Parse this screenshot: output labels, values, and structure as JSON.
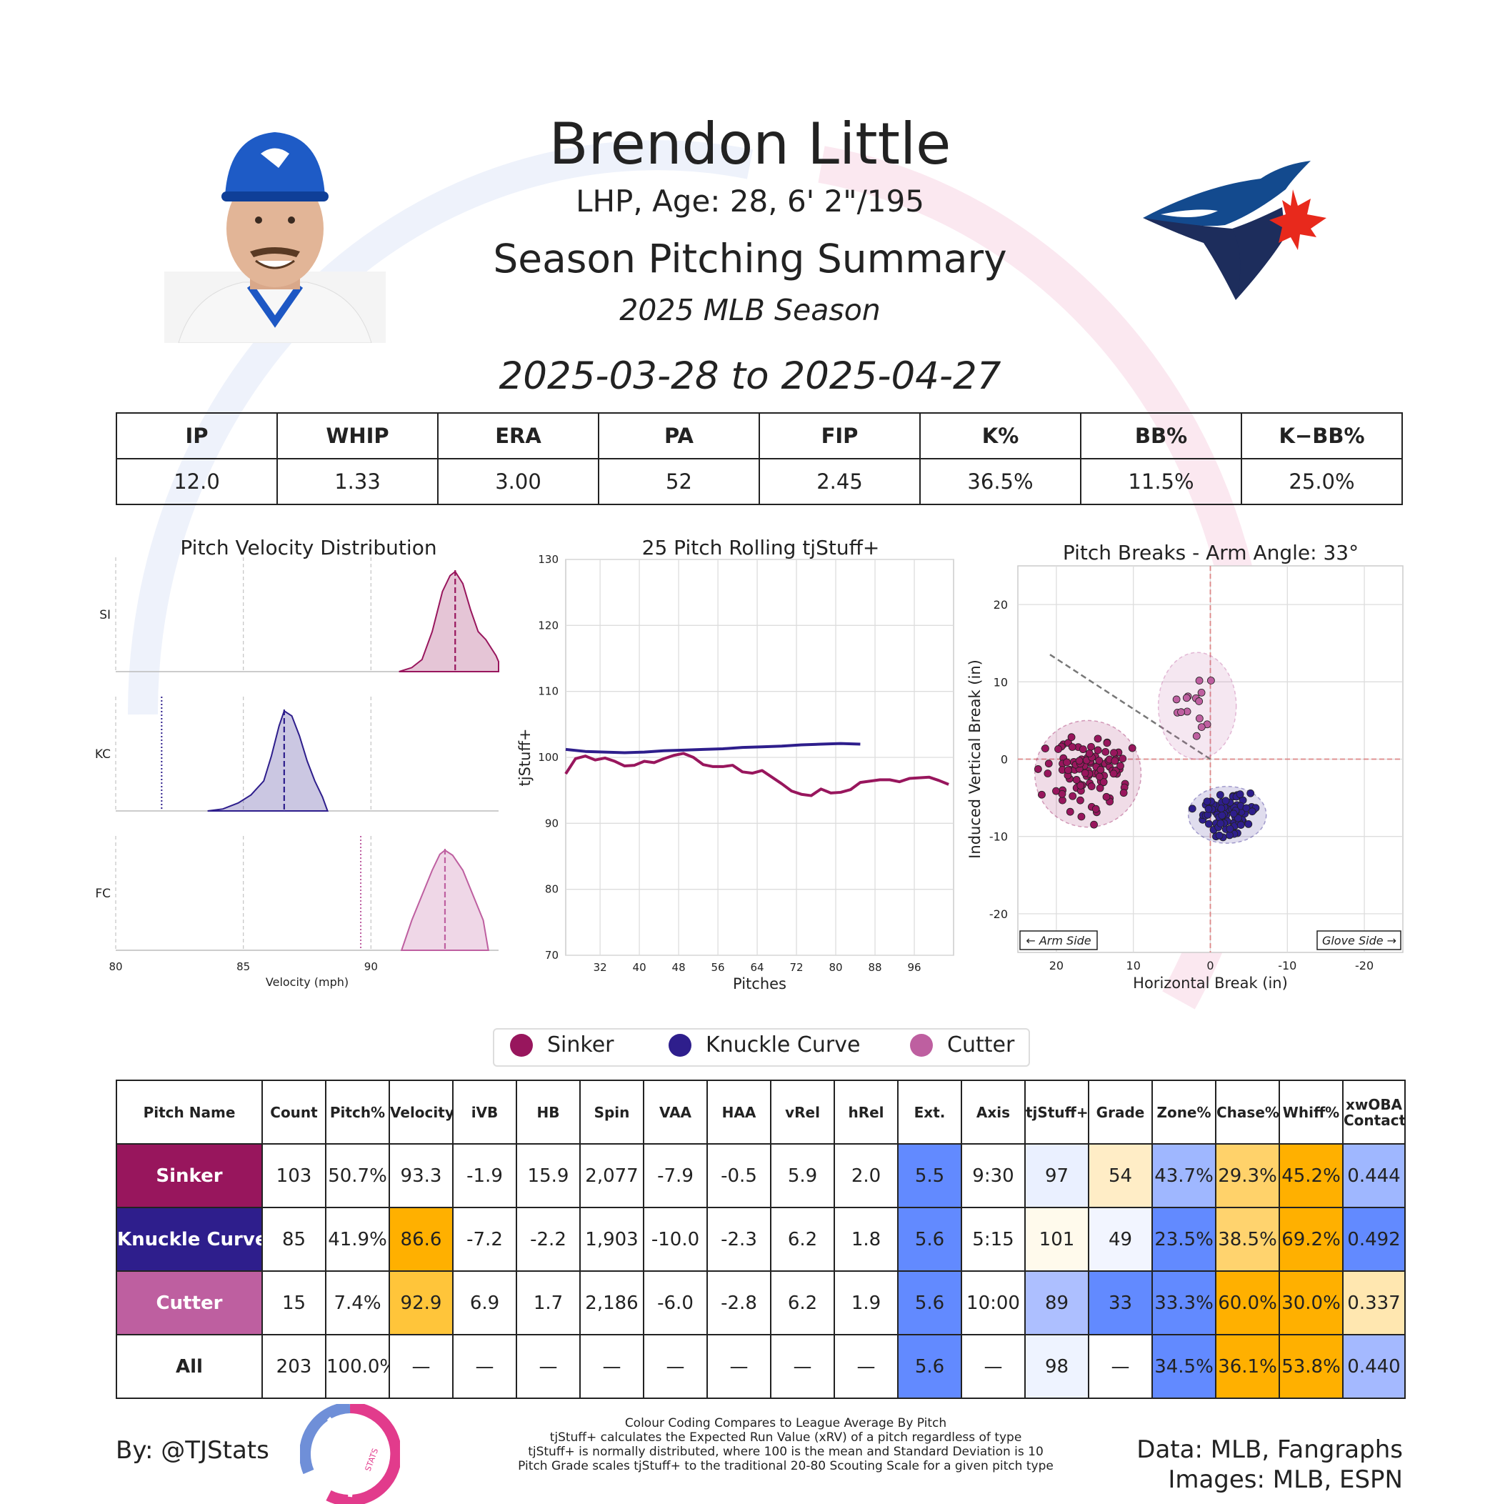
{
  "header": {
    "name": "Brendon Little",
    "bio": "LHP, Age: 28, 6' 2\"/195",
    "summary_title": "Season Pitching Summary",
    "season": "2025 MLB Season",
    "date_range": "2025-03-28 to 2025-04-27"
  },
  "season_stats": {
    "headers": [
      "IP",
      "WHIP",
      "ERA",
      "PA",
      "FIP",
      "K%",
      "BB%",
      "K−BB%"
    ],
    "values": [
      "12.0",
      "1.33",
      "3.00",
      "52",
      "2.45",
      "36.5%",
      "11.5%",
      "25.0%"
    ]
  },
  "colors": {
    "sinker": "#98165d",
    "knuckle_curve": "#2e1e8c",
    "cutter": "#be5fa0",
    "blue_cell": "#628aff",
    "light_blue_cell": "#adbfff",
    "orange_cell": "#ffb000",
    "light_orange_cell": "#ffd470"
  },
  "chart_data": [
    {
      "type": "area",
      "title": "Pitch Velocity Distribution",
      "xlabel": "Velocity (mph)",
      "xlim": [
        80,
        95
      ],
      "xticks": [
        "80",
        "85",
        "90"
      ],
      "series": [
        {
          "name": "SI",
          "peak": 93.3,
          "x": [
            91.1,
            91.6,
            92.0,
            92.4,
            92.8,
            93.1,
            93.3,
            93.6,
            93.9,
            94.2,
            94.5,
            94.9,
            95.0
          ],
          "y": [
            0.0,
            0.04,
            0.12,
            0.4,
            0.8,
            0.96,
            1.0,
            0.88,
            0.62,
            0.4,
            0.32,
            0.16,
            0.1
          ],
          "mean": 93.3
        },
        {
          "name": "KC",
          "peak": 86.6,
          "x": [
            83.6,
            84.2,
            84.8,
            85.3,
            85.8,
            86.1,
            86.4,
            86.6,
            86.9,
            87.2,
            87.5,
            87.8,
            88.1,
            88.3
          ],
          "y": [
            0.0,
            0.02,
            0.08,
            0.16,
            0.3,
            0.55,
            0.85,
            1.0,
            0.95,
            0.75,
            0.5,
            0.3,
            0.14,
            0.0
          ],
          "mean": 86.6,
          "league_avg": 81.8
        },
        {
          "name": "FC",
          "peak": 92.9,
          "x": [
            91.2,
            91.6,
            92.0,
            92.4,
            92.7,
            92.9,
            93.2,
            93.6,
            94.0,
            94.4,
            94.6
          ],
          "y": [
            0.0,
            0.3,
            0.55,
            0.8,
            0.96,
            1.0,
            0.95,
            0.8,
            0.55,
            0.3,
            0.0
          ],
          "mean": 92.9,
          "league_avg": 89.6
        }
      ]
    },
    {
      "type": "line",
      "title": "25 Pitch Rolling tjStuff+",
      "xlabel": "Pitches",
      "ylabel": "tjStuff+",
      "ylim": [
        70,
        130
      ],
      "xlim": [
        25,
        104
      ],
      "yticks": [
        "70",
        "80",
        "90",
        "100",
        "110",
        "120",
        "130"
      ],
      "xticks": [
        "32",
        "40",
        "48",
        "56",
        "64",
        "72",
        "80",
        "88",
        "96"
      ],
      "series": [
        {
          "name": "Sinker",
          "x": [
            25,
            27,
            29,
            31,
            33,
            35,
            37,
            39,
            41,
            43,
            45,
            47,
            49,
            51,
            53,
            55,
            57,
            59,
            61,
            63,
            65,
            67,
            69,
            71,
            73,
            75,
            77,
            79,
            81,
            83,
            85,
            87,
            89,
            91,
            93,
            95,
            97,
            99,
            101,
            103
          ],
          "values": [
            97.5,
            99.8,
            100.2,
            99.6,
            99.9,
            99.4,
            98.7,
            98.8,
            99.4,
            99.2,
            99.8,
            100.3,
            100.6,
            100.0,
            98.9,
            98.6,
            98.6,
            98.8,
            97.8,
            97.6,
            98.0,
            97.0,
            96.0,
            94.9,
            94.4,
            94.2,
            95.2,
            94.6,
            94.7,
            95.1,
            96.2,
            96.4,
            96.6,
            96.6,
            96.3,
            96.8,
            96.9,
            97.0,
            96.5,
            95.9
          ]
        },
        {
          "name": "Knuckle Curve",
          "x": [
            25,
            29,
            33,
            37,
            41,
            45,
            49,
            53,
            57,
            61,
            65,
            69,
            73,
            77,
            81,
            85
          ],
          "values": [
            101.2,
            100.9,
            100.8,
            100.7,
            100.8,
            101.0,
            101.1,
            101.2,
            101.3,
            101.5,
            101.6,
            101.7,
            101.9,
            102.0,
            102.1,
            102.0
          ]
        }
      ]
    },
    {
      "type": "scatter",
      "title": "Pitch Breaks - Arm Angle: 33°",
      "xlabel": "Horizontal Break (in)",
      "ylabel": "Induced Vertical Break (in)",
      "xlim": [
        25,
        -25
      ],
      "ylim": [
        -25,
        25
      ],
      "xticks": [
        "20",
        "10",
        "0",
        "-10",
        "-20"
      ],
      "yticks": [
        "20",
        "10",
        "0",
        "-10",
        "-20"
      ],
      "arm_angle_deg": 33,
      "annotations": [
        "← Arm Side",
        "Glove Side →"
      ],
      "series": [
        {
          "name": "Sinker",
          "center": [
            15.9,
            -1.9
          ],
          "spread": [
            3.0,
            3.0
          ],
          "count": 103
        },
        {
          "name": "Knuckle Curve",
          "center": [
            -2.2,
            -7.2
          ],
          "spread": [
            2.2,
            1.6
          ],
          "count": 85
        },
        {
          "name": "Cutter",
          "center": [
            1.7,
            6.9
          ],
          "spread": [
            2.2,
            3.0
          ],
          "count": 15
        }
      ]
    }
  ],
  "legend": [
    "Sinker",
    "Knuckle Curve",
    "Cutter"
  ],
  "pitch_table": {
    "headers": [
      "Pitch Name",
      "Count",
      "Pitch%",
      "Velocity",
      "iVB",
      "HB",
      "Spin",
      "VAA",
      "HAA",
      "vRel",
      "hRel",
      "Ext.",
      "Axis",
      "tjStuff+",
      "Grade",
      "Zone%",
      "Chase%",
      "Whiff%",
      "xwOBA Contact"
    ],
    "rows": [
      {
        "key": "sinker",
        "cells": [
          "Sinker",
          "103",
          "50.7%",
          "93.3",
          "-1.9",
          "15.9",
          "2,077",
          "-7.9",
          "-0.5",
          "5.9",
          "2.0",
          "5.5",
          "9:30",
          "97",
          "54",
          "43.7%",
          "29.3%",
          "45.2%",
          "0.444"
        ],
        "bg": [
          "",
          "",
          "",
          "",
          "",
          "",
          "",
          "",
          "",
          "",
          "",
          "#628aff",
          "",
          "#eaf0ff",
          "#ffedc6",
          "#9fb7ff",
          "#ffd26a",
          "#ffb000",
          "#9fb7ff"
        ]
      },
      {
        "key": "knuckle_curve",
        "cells": [
          "Knuckle Curve",
          "85",
          "41.9%",
          "86.6",
          "-7.2",
          "-2.2",
          "1,903",
          "-10.0",
          "-2.3",
          "6.2",
          "1.8",
          "5.6",
          "5:15",
          "101",
          "49",
          "23.5%",
          "38.5%",
          "69.2%",
          "0.492"
        ],
        "bg": [
          "",
          "",
          "",
          "#ffb000",
          "",
          "",
          "",
          "",
          "",
          "",
          "",
          "#628aff",
          "",
          "#fffaec",
          "#f2f5ff",
          "#628aff",
          "#ffd36e",
          "#ffb000",
          "#628aff"
        ]
      },
      {
        "key": "cutter",
        "cells": [
          "Cutter",
          "15",
          "7.4%",
          "92.9",
          "6.9",
          "1.7",
          "2,186",
          "-6.0",
          "-2.8",
          "6.2",
          "1.9",
          "5.6",
          "10:00",
          "89",
          "33",
          "33.3%",
          "60.0%",
          "30.0%",
          "0.337"
        ],
        "bg": [
          "",
          "",
          "",
          "#ffc53a",
          "",
          "",
          "",
          "",
          "",
          "",
          "",
          "#628aff",
          "",
          "#adbfff",
          "#628aff",
          "#628aff",
          "#ffb000",
          "#ffb000",
          "#ffe7b0"
        ]
      },
      {
        "key": "all",
        "cells": [
          "All",
          "203",
          "100.0%",
          "—",
          "—",
          "—",
          "—",
          "—",
          "—",
          "—",
          "—",
          "5.6",
          "—",
          "98",
          "—",
          "34.5%",
          "36.1%",
          "53.8%",
          "0.440"
        ],
        "bg": [
          "",
          "",
          "",
          "",
          "",
          "",
          "",
          "",
          "",
          "",
          "",
          "#628aff",
          "",
          "#eef3ff",
          "",
          "#628aff",
          "#ffb000",
          "#ffb000",
          "#a4b9ff"
        ]
      }
    ]
  },
  "footer": {
    "byline": "By: @TJStats",
    "logo_text": "STATS",
    "notes": [
      "Colour Coding Compares to League Average By Pitch",
      "tjStuff+ calculates the Expected Run Value (xRV) of a pitch regardless of type",
      "tjStuff+ is normally distributed, where 100 is the mean and Standard Deviation is 10",
      "Pitch Grade scales tjStuff+ to the traditional 20-80 Scouting Scale for a given pitch type"
    ],
    "data_credit": "Data: MLB, Fangraphs",
    "image_credit": "Images: MLB, ESPN"
  }
}
